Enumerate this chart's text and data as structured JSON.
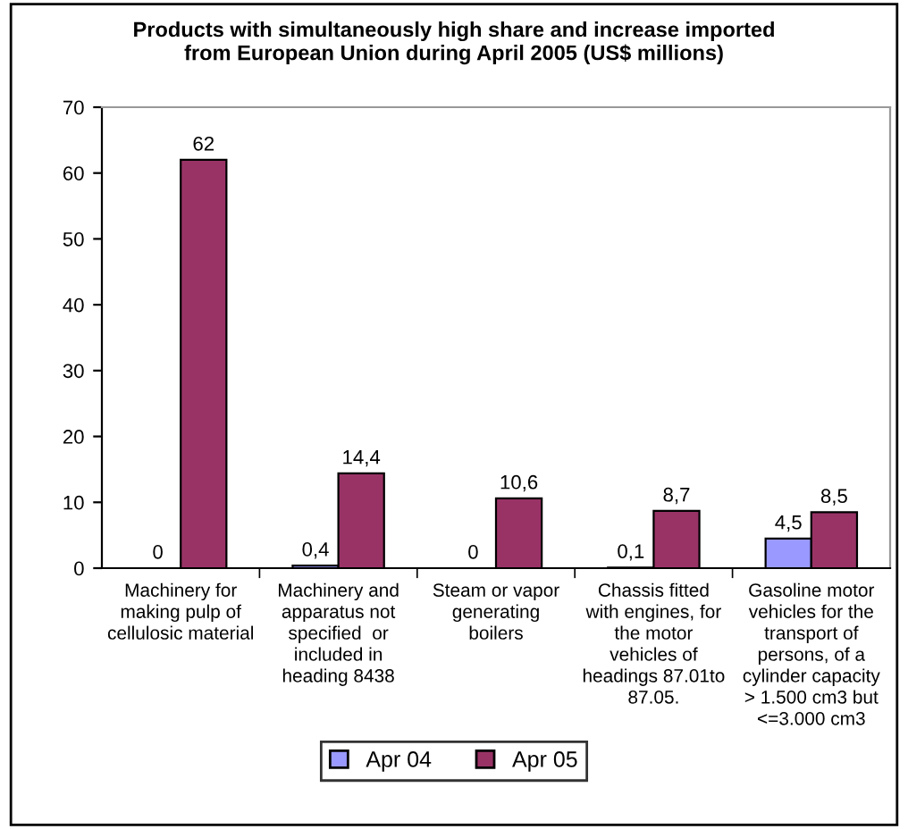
{
  "chart_data": {
    "type": "bar",
    "title": "Products with simultaneously high share and increase imported\nfrom European Union during April 2005 (US$ millions)",
    "categories": [
      "Machinery for\nmaking pulp of\ncellulosic material",
      "Machinery and\napparatus not\nspecified  or\nincluded in\nheading 8438",
      "Steam or vapor\ngenerating\nboilers",
      "Chassis fitted\nwith engines, for\nthe motor\nvehicles of\nheadings 87.01to\n87.05.",
      "Gasoline motor\nvehicles for the\ntransport of\npersons, of a\ncylinder capacity\n> 1.500 cm3 but\n<=3.000 cm3"
    ],
    "series": [
      {
        "name": "Apr 04",
        "color": "#9999ff",
        "values": [
          0,
          0.4,
          0,
          0.1,
          4.5
        ],
        "value_labels": [
          "0",
          "0,4",
          "0",
          "0,1",
          "4,5"
        ]
      },
      {
        "name": "Apr 05",
        "color": "#993366",
        "values": [
          62,
          14.4,
          10.6,
          8.7,
          8.5
        ],
        "value_labels": [
          "62",
          "14,4",
          "10,6",
          "8,7",
          "8,5"
        ]
      }
    ],
    "ylim": [
      0,
      70
    ],
    "yticks": [
      0,
      10,
      20,
      30,
      40,
      50,
      60,
      70
    ],
    "grid": false,
    "legend": "bottom"
  }
}
